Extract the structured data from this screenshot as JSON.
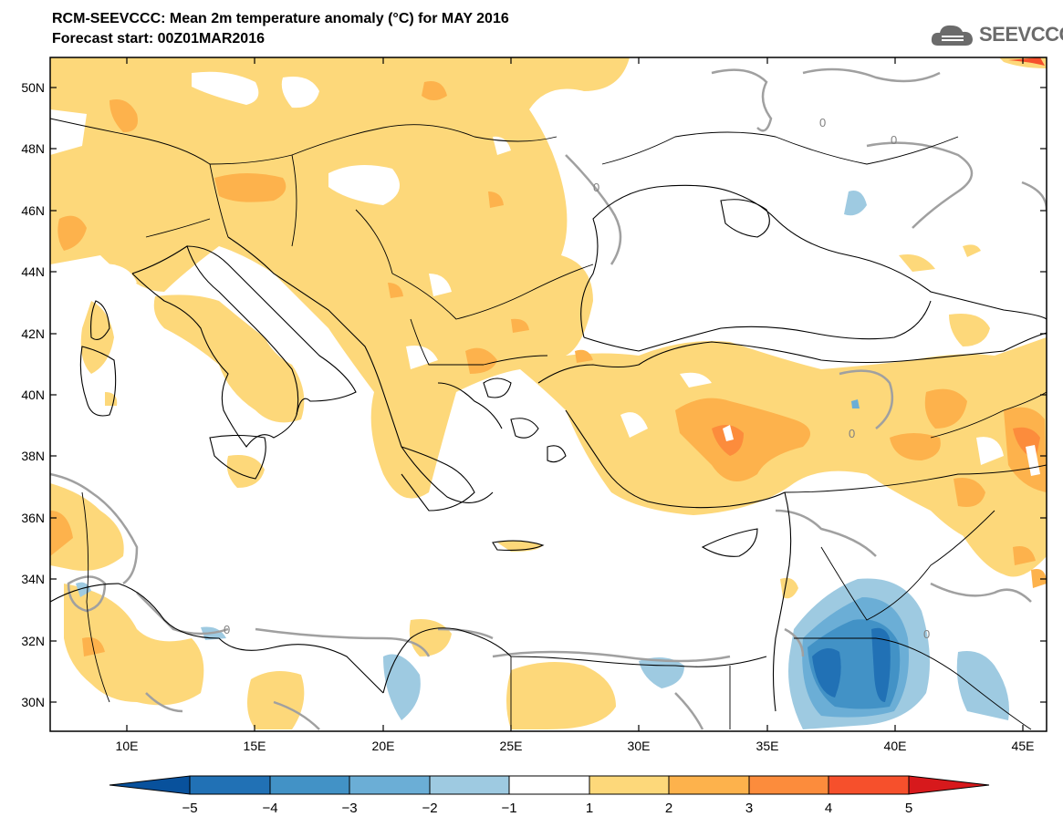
{
  "title_line1": "RCM-SEEVCCC: Mean 2m temperature anomaly (°C) for MAY 2016",
  "title_line2": "Forecast start: 00Z01MAR2016",
  "logo_text": "SEEVCCC",
  "map": {
    "lat_labels": [
      "50N",
      "48N",
      "46N",
      "44N",
      "42N",
      "40N",
      "38N",
      "36N",
      "34N",
      "32N",
      "30N"
    ],
    "lon_labels": [
      "10E",
      "15E",
      "20E",
      "25E",
      "30E",
      "35E",
      "40E",
      "45E"
    ],
    "contour_labels": [
      "0",
      "0",
      "0",
      "0",
      "0",
      "0"
    ]
  },
  "colorbar": {
    "ticks": [
      "−5",
      "−4",
      "−3",
      "−2",
      "−1",
      "1",
      "2",
      "3",
      "4",
      "5"
    ],
    "colors": [
      "#08519c",
      "#2171b5",
      "#4292c6",
      "#6baed6",
      "#9ecae1",
      "#ffffff",
      "#fdd87a",
      "#fdb24c",
      "#fc8c3c",
      "#f6502c",
      "#d7191c"
    ]
  }
}
